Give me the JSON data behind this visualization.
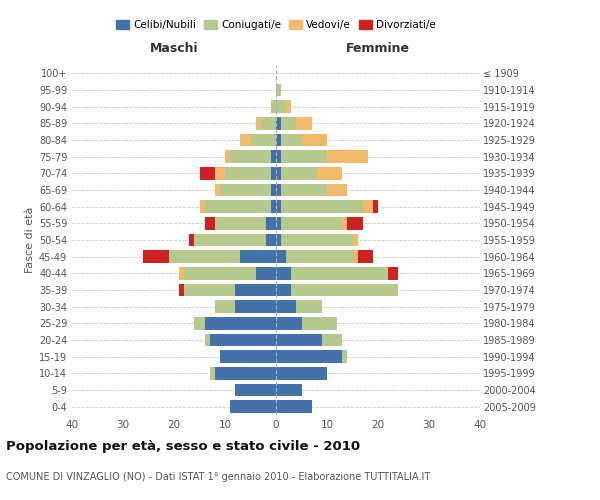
{
  "age_groups": [
    "0-4",
    "5-9",
    "10-14",
    "15-19",
    "20-24",
    "25-29",
    "30-34",
    "35-39",
    "40-44",
    "45-49",
    "50-54",
    "55-59",
    "60-64",
    "65-69",
    "70-74",
    "75-79",
    "80-84",
    "85-89",
    "90-94",
    "95-99",
    "100+"
  ],
  "birth_years": [
    "2005-2009",
    "2000-2004",
    "1995-1999",
    "1990-1994",
    "1985-1989",
    "1980-1984",
    "1975-1979",
    "1970-1974",
    "1965-1969",
    "1960-1964",
    "1955-1959",
    "1950-1954",
    "1945-1949",
    "1940-1944",
    "1935-1939",
    "1930-1934",
    "1925-1929",
    "1920-1924",
    "1915-1919",
    "1910-1914",
    "≤ 1909"
  ],
  "males": {
    "celibi": [
      9,
      8,
      12,
      11,
      13,
      14,
      8,
      8,
      4,
      7,
      2,
      2,
      1,
      1,
      1,
      1,
      0,
      0,
      0,
      0,
      0
    ],
    "coniugati": [
      0,
      0,
      1,
      0,
      1,
      2,
      4,
      10,
      14,
      14,
      14,
      10,
      13,
      10,
      9,
      8,
      5,
      3,
      1,
      0,
      0
    ],
    "vedovi": [
      0,
      0,
      0,
      0,
      0,
      0,
      0,
      0,
      1,
      0,
      0,
      0,
      1,
      1,
      2,
      1,
      2,
      1,
      0,
      0,
      0
    ],
    "divorziati": [
      0,
      0,
      0,
      0,
      0,
      0,
      0,
      1,
      0,
      5,
      1,
      2,
      0,
      0,
      3,
      0,
      0,
      0,
      0,
      0,
      0
    ]
  },
  "females": {
    "nubili": [
      7,
      5,
      10,
      13,
      9,
      5,
      4,
      3,
      3,
      2,
      1,
      1,
      1,
      1,
      1,
      1,
      1,
      1,
      0,
      0,
      0
    ],
    "coniugate": [
      0,
      0,
      0,
      1,
      4,
      7,
      5,
      21,
      19,
      13,
      14,
      12,
      16,
      9,
      7,
      9,
      4,
      3,
      2,
      1,
      0
    ],
    "vedove": [
      0,
      0,
      0,
      0,
      0,
      0,
      0,
      0,
      0,
      1,
      1,
      1,
      2,
      4,
      5,
      8,
      5,
      3,
      1,
      0,
      0
    ],
    "divorziate": [
      0,
      0,
      0,
      0,
      0,
      0,
      0,
      0,
      2,
      3,
      0,
      3,
      1,
      0,
      0,
      0,
      0,
      0,
      0,
      0,
      0
    ]
  },
  "colors": {
    "celibi": "#4472a8",
    "coniugati": "#b5c98e",
    "vedovi": "#f0b96b",
    "divorziati": "#cc2222"
  },
  "xlim": 40,
  "title": "Popolazione per età, sesso e stato civile - 2010",
  "subtitle": "COMUNE DI VINZAGLIO (NO) - Dati ISTAT 1° gennaio 2010 - Elaborazione TUTTITALIA.IT",
  "ylabel_left": "Fasce di età",
  "xlabel_left": "Maschi",
  "xlabel_right": "Femmine"
}
